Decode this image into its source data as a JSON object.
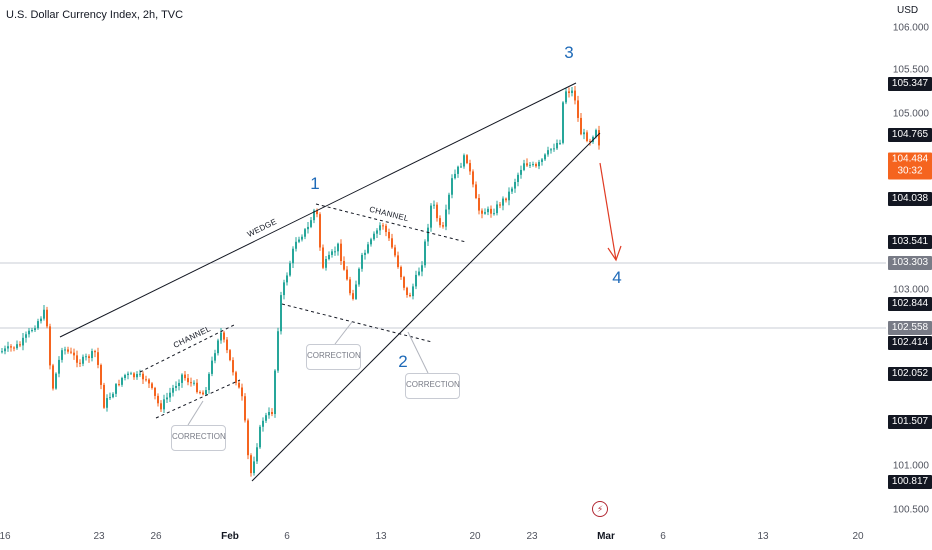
{
  "header": {
    "symbol_title": "U.S. Dollar Currency Index, 2h, TVC",
    "currency": "USD"
  },
  "price_scale": {
    "ticks": [
      "106.000",
      "105.500",
      "105.000",
      "103.000",
      "101.000",
      "100.500"
    ],
    "tags": [
      {
        "label": "105.347",
        "style": "dark"
      },
      {
        "label": "104.765",
        "style": "dark"
      },
      {
        "label": "104.038",
        "style": "dark"
      },
      {
        "label": "103.541",
        "style": "dark"
      },
      {
        "label": "103.303",
        "style": "gray"
      },
      {
        "label": "102.844",
        "style": "dark"
      },
      {
        "label": "102.558",
        "style": "gray"
      },
      {
        "label": "102.414",
        "style": "dark"
      },
      {
        "label": "102.052",
        "style": "dark"
      },
      {
        "label": "101.507",
        "style": "dark"
      },
      {
        "label": "100.817",
        "style": "dark"
      }
    ],
    "current": {
      "price": "104.484",
      "countdown": "30:32"
    }
  },
  "time_axis": {
    "ticks": [
      "16",
      "23",
      "26",
      "Feb",
      "6",
      "13",
      "20",
      "23",
      "Mar",
      "6",
      "13",
      "20"
    ]
  },
  "annotations": {
    "waves": [
      "1",
      "2",
      "3",
      "4"
    ],
    "wedge_label": "WEDGE",
    "channel_labels": [
      "CHANNEL",
      "CHANNEL"
    ],
    "correction_labels": [
      "CORRECTION",
      "CORRECTION",
      "CORRECTION"
    ]
  },
  "colors": {
    "bull": "#26a69a",
    "bear": "#f5641f",
    "wave_label": "#1e6ab8",
    "projection_arrow": "#e03b24"
  },
  "icons": {
    "replay": "flash-icon"
  }
}
